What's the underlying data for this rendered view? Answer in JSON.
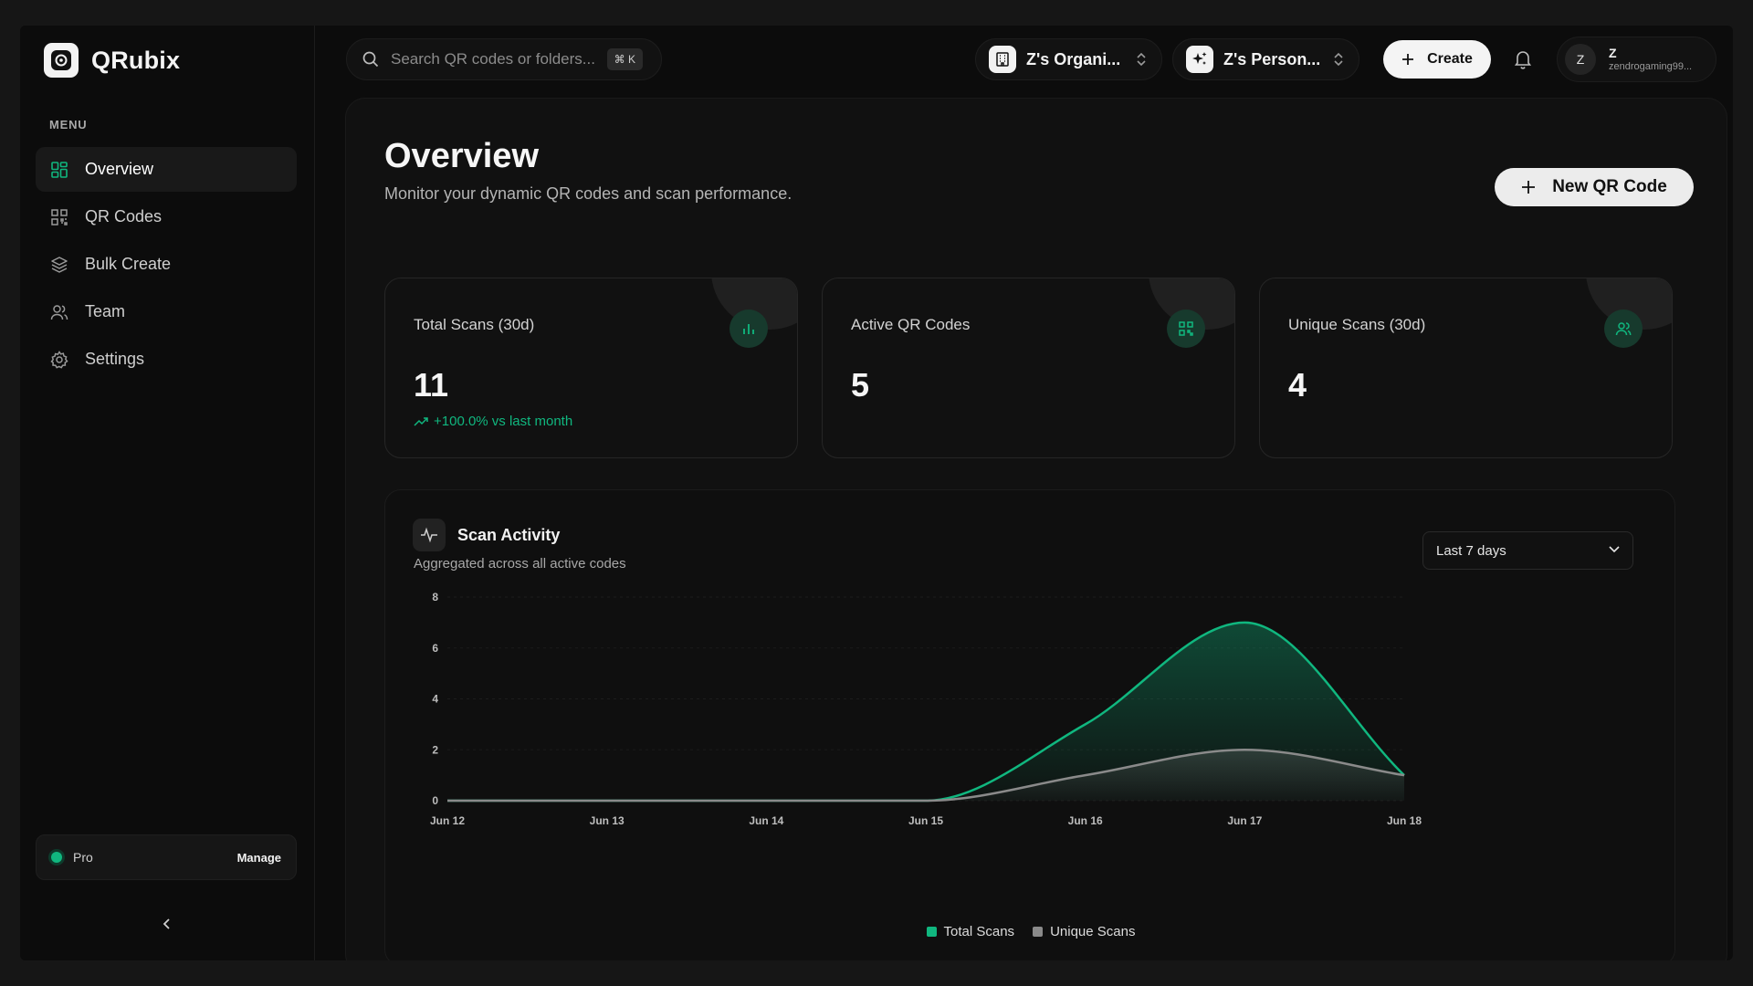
{
  "brand": {
    "name": "QRubix"
  },
  "sidebar": {
    "menu_label": "MENU",
    "items": [
      {
        "label": "Overview",
        "icon": "grid-icon",
        "active": true
      },
      {
        "label": "QR Codes",
        "icon": "qr-icon",
        "active": false
      },
      {
        "label": "Bulk Create",
        "icon": "layers-icon",
        "active": false
      },
      {
        "label": "Team",
        "icon": "users-icon",
        "active": false
      },
      {
        "label": "Settings",
        "icon": "gear-icon",
        "active": false
      }
    ],
    "plan": {
      "name": "Pro",
      "manage_label": "Manage"
    }
  },
  "header": {
    "search_placeholder": "Search QR codes or folders...",
    "search_shortcut": "⌘ K",
    "org_switcher": "Z's Organi...",
    "workspace_switcher": "Z's Person...",
    "create_label": "Create",
    "user": {
      "initial": "Z",
      "name": "Z",
      "email": "zendrogaming99..."
    }
  },
  "page": {
    "title": "Overview",
    "subtitle": "Monitor your dynamic QR codes and scan performance.",
    "new_button": "New QR Code"
  },
  "stats": [
    {
      "label": "Total Scans (30d)",
      "value": "11",
      "trend": "+100.0% vs last month",
      "icon": "bar-chart-icon"
    },
    {
      "label": "Active QR Codes",
      "value": "5",
      "trend": "",
      "icon": "qr-icon"
    },
    {
      "label": "Unique Scans (30d)",
      "value": "4",
      "trend": "",
      "icon": "users-icon"
    }
  ],
  "activity": {
    "title": "Scan Activity",
    "subtitle": "Aggregated across all active codes",
    "range": "Last 7 days"
  },
  "colors": {
    "accent": "#10b77f",
    "unique": "#8a8a8a"
  },
  "chart_data": {
    "type": "area",
    "x": [
      "Jun 12",
      "Jun 13",
      "Jun 14",
      "Jun 15",
      "Jun 16",
      "Jun 17",
      "Jun 18"
    ],
    "yticks": [
      0,
      2,
      4,
      6,
      8
    ],
    "ylim": [
      0,
      8
    ],
    "series": [
      {
        "name": "Total Scans",
        "values": [
          0,
          0,
          0,
          0,
          3,
          7,
          1
        ],
        "color": "#10b77f"
      },
      {
        "name": "Unique Scans",
        "values": [
          0,
          0,
          0,
          0,
          1,
          2,
          1
        ],
        "color": "#8a8a8a"
      }
    ],
    "legend": "bottom"
  }
}
